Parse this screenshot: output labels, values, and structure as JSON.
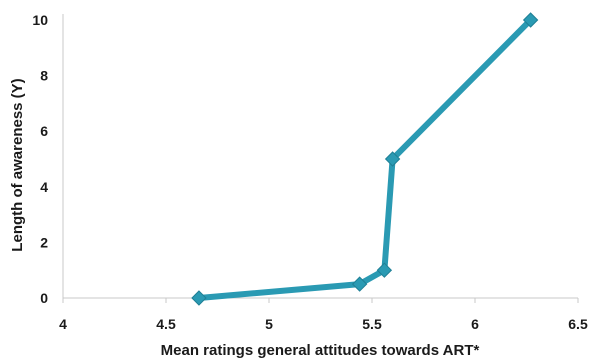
{
  "chart_data": {
    "type": "line",
    "title": "",
    "xlabel": "Mean ratings general attitudes towards ART*",
    "ylabel": "Length of awareness (Y)",
    "xlim": [
      4,
      6.5
    ],
    "ylim": [
      0,
      10
    ],
    "x_ticks": [
      "4",
      "4.5",
      "5",
      "5.5",
      "6",
      "6.5"
    ],
    "y_ticks": [
      "0",
      "2",
      "4",
      "6",
      "8",
      "10"
    ],
    "grid": false,
    "legend": "none",
    "series": [
      {
        "color": "#2a9ab3",
        "marker": "diamond",
        "points": [
          {
            "x": 4.66,
            "y": 0
          },
          {
            "x": 5.44,
            "y": 0.5
          },
          {
            "x": 5.56,
            "y": 1
          },
          {
            "x": 5.6,
            "y": 5
          },
          {
            "x": 6.27,
            "y": 10
          }
        ]
      }
    ]
  }
}
